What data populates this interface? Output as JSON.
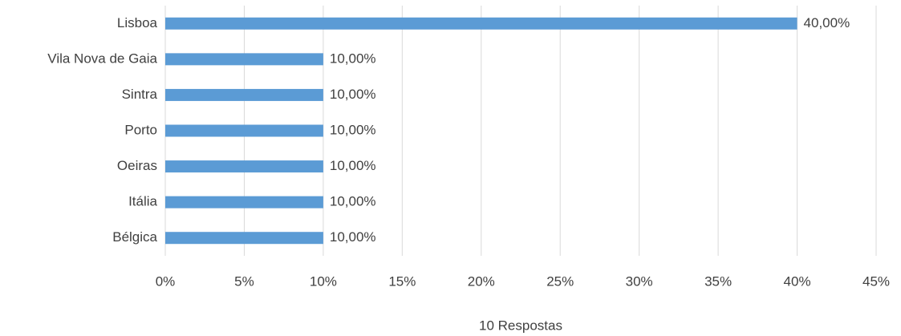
{
  "chart_data": {
    "type": "hbar",
    "categories": [
      "Lisboa",
      "Vila Nova de Gaia",
      "Sintra",
      "Porto",
      "Oeiras",
      "Itália",
      "Bélgica"
    ],
    "values": [
      40,
      10,
      10,
      10,
      10,
      10,
      10
    ],
    "value_labels": [
      "40,00%",
      "10,00%",
      "10,00%",
      "10,00%",
      "10,00%",
      "10,00%",
      "10,00%"
    ],
    "color": "#5b9bd5",
    "xlim": [
      0,
      45
    ],
    "xticks": [
      {
        "value": 0,
        "label": "0%"
      },
      {
        "value": 5,
        "label": "5%"
      },
      {
        "value": 10,
        "label": "10%"
      },
      {
        "value": 15,
        "label": "15%"
      },
      {
        "value": 20,
        "label": "20%"
      },
      {
        "value": 25,
        "label": "25%"
      },
      {
        "value": 30,
        "label": "30%"
      },
      {
        "value": 35,
        "label": "35%"
      },
      {
        "value": 40,
        "label": "40%"
      },
      {
        "value": 45,
        "label": "45%"
      }
    ],
    "xlabel": "10 Respostas",
    "grid": true
  }
}
